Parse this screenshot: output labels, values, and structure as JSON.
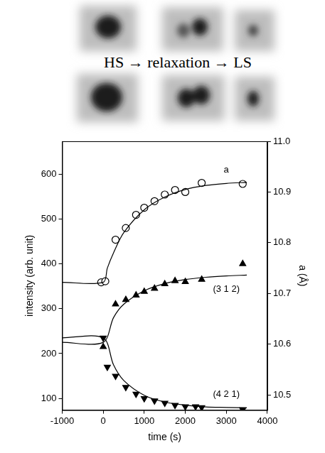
{
  "images_caption": "HS → relaxation → LS",
  "chart_data": {
    "type": "scatter",
    "x_label": "time (s)",
    "y_label": "intensity (arb. unit)",
    "y2_label": "a (Å)",
    "xlim": [
      -1000,
      4000
    ],
    "xticks": [
      -1000,
      0,
      1000,
      2000,
      3000,
      4000
    ],
    "ylim": [
      74,
      673
    ],
    "yticks": [
      100,
      200,
      300,
      400,
      500,
      600
    ],
    "y2lim": [
      10.47,
      11.0
    ],
    "y2ticks": [
      10.5,
      10.6,
      10.7,
      10.8,
      10.9,
      {
        "value": 11,
        "label": "11.0"
      }
    ],
    "grid": false,
    "series": [
      {
        "name": "a",
        "axis": "y2",
        "color": "#000000",
        "marker": "circle_open",
        "line_style": "solid",
        "x": [
          -50,
          50,
          300,
          550,
          800,
          1000,
          1250,
          1500,
          1750,
          2000,
          2400,
          3400
        ],
        "values": [
          10.722,
          10.724,
          10.806,
          10.829,
          10.855,
          10.869,
          10.882,
          10.895,
          10.904,
          10.9,
          10.918,
          10.916
        ],
        "fit": {
          "x": [
            -1000,
            0,
            100,
            250,
            500,
            1000,
            1500,
            2000,
            2500,
            3000,
            3500
          ],
          "values": [
            10.722,
            10.722,
            10.75,
            10.78,
            10.82,
            10.865,
            10.89,
            10.905,
            10.913,
            10.917,
            10.919
          ]
        }
      },
      {
        "name": "(3 1 2)",
        "color": "#000000",
        "marker": "triangle",
        "line_style": "solid",
        "x": [
          0,
          300,
          550,
          800,
          1000,
          1250,
          1500,
          1750,
          2000,
          2400,
          3400
        ],
        "values": [
          215,
          310,
          320,
          330,
          338,
          345,
          355,
          362,
          360,
          365,
          400
        ],
        "fit": {
          "x": [
            -1000,
            0,
            250,
            500,
            1000,
            1500,
            2000,
            2500,
            3000,
            3500
          ],
          "values": [
            225,
            225,
            280,
            310,
            340,
            356,
            365,
            370,
            373,
            375
          ]
        }
      },
      {
        "name": "(4 2 1)",
        "color": "#000000",
        "marker": "triangle_down",
        "line_style": "solid",
        "x": [
          0,
          100,
          300,
          550,
          800,
          1000,
          1250,
          1500,
          1750,
          2000,
          2250,
          2400,
          3400
        ],
        "values": [
          235,
          170,
          150,
          125,
          110,
          100,
          95,
          90,
          85,
          82,
          82,
          80,
          75
        ],
        "fit": {
          "x": [
            -1000,
            0,
            250,
            500,
            1000,
            1500,
            2000,
            2500,
            3000,
            3500
          ],
          "values": [
            235,
            235,
            175,
            140,
            107,
            92,
            85,
            81,
            80,
            79
          ]
        }
      }
    ]
  }
}
